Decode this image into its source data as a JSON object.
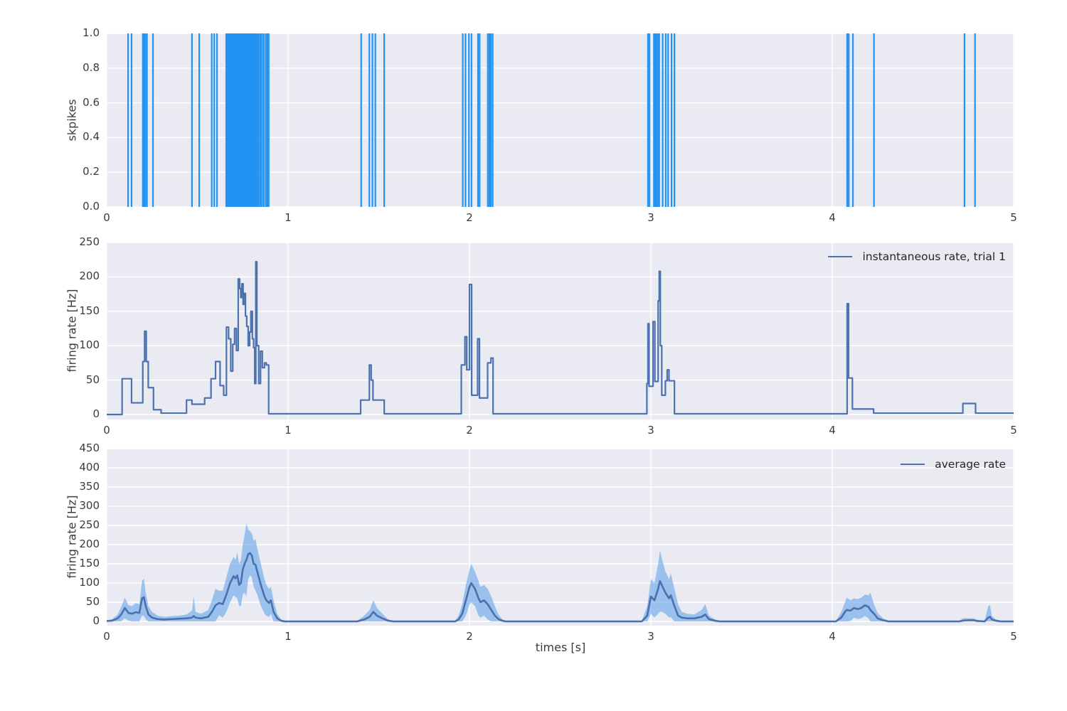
{
  "style": {
    "figure_background": "#ffffff",
    "axes_background": "#eaeaf2",
    "grid_color": "#ffffff",
    "tick_label_color": "#3b3b3b",
    "spike_color": "#2292f4",
    "instant_line_color": "#4c72b0",
    "average_line_color": "#4a70ad",
    "band_color": "rgba(110,170,235,0.65)"
  },
  "chart_data": [
    {
      "id": "spikes",
      "type": "event",
      "ylabel": "skpikes",
      "xlim": [
        0,
        5
      ],
      "ylim": [
        0,
        1
      ],
      "xticks": [
        0,
        1,
        2,
        3,
        4,
        5
      ],
      "xtick_labels": [
        "0",
        "1",
        "2",
        "3",
        "4",
        "5"
      ],
      "yticks": [
        0,
        0.2,
        0.4,
        0.6,
        0.8,
        1.0
      ],
      "ytick_labels": [
        "0.0",
        "0.2",
        "0.4",
        "0.6",
        "0.8",
        "1.0"
      ],
      "grid": true,
      "events": [
        0.118,
        0.137,
        0.199,
        0.206,
        0.213,
        0.222,
        0.255,
        0.47,
        0.51,
        0.579,
        0.593,
        0.608,
        0.659,
        0.667,
        0.674,
        0.681,
        0.688,
        0.696,
        0.703,
        0.71,
        0.716,
        0.722,
        0.728,
        0.734,
        0.74,
        0.746,
        0.752,
        0.758,
        0.764,
        0.77,
        0.776,
        0.782,
        0.788,
        0.794,
        0.8,
        0.807,
        0.814,
        0.822,
        0.83,
        0.838,
        0.847,
        0.856,
        0.866,
        0.877,
        0.885,
        0.893,
        1.403,
        1.448,
        1.465,
        1.481,
        1.53,
        1.963,
        1.978,
        1.997,
        2.011,
        2.047,
        2.056,
        2.101,
        2.11,
        2.118,
        2.128,
        2.984,
        2.993,
        3.017,
        3.024,
        3.032,
        3.04,
        3.046,
        3.065,
        3.082,
        3.095,
        3.114,
        3.13,
        4.082,
        4.091,
        4.114,
        4.23,
        4.729,
        4.787
      ]
    },
    {
      "id": "instantaneous",
      "type": "step",
      "legend": "instantaneous rate, trial 1",
      "ylabel": "firing rate [Hz]",
      "xlim": [
        0,
        5
      ],
      "ylim": [
        0,
        250
      ],
      "xticks": [
        0,
        1,
        2,
        3,
        4,
        5
      ],
      "xtick_labels": [
        "0",
        "1",
        "2",
        "3",
        "4",
        "5"
      ],
      "yticks": [
        0,
        50,
        100,
        150,
        200,
        250
      ],
      "ytick_labels": [
        "0",
        "50",
        "100",
        "150",
        "200",
        "250"
      ],
      "grid": true,
      "steps": [
        [
          0.0,
          0
        ],
        [
          0.085,
          52
        ],
        [
          0.137,
          17
        ],
        [
          0.199,
          77
        ],
        [
          0.209,
          121
        ],
        [
          0.218,
          77
        ],
        [
          0.229,
          39
        ],
        [
          0.258,
          7
        ],
        [
          0.3,
          2
        ],
        [
          0.44,
          21
        ],
        [
          0.47,
          15
        ],
        [
          0.54,
          24
        ],
        [
          0.575,
          52
        ],
        [
          0.6,
          77
        ],
        [
          0.625,
          42
        ],
        [
          0.645,
          28
        ],
        [
          0.66,
          127
        ],
        [
          0.672,
          110
        ],
        [
          0.684,
          63
        ],
        [
          0.695,
          102
        ],
        [
          0.705,
          125
        ],
        [
          0.715,
          93
        ],
        [
          0.725,
          197
        ],
        [
          0.733,
          183
        ],
        [
          0.739,
          170
        ],
        [
          0.745,
          190
        ],
        [
          0.752,
          160
        ],
        [
          0.758,
          176
        ],
        [
          0.765,
          143
        ],
        [
          0.772,
          128
        ],
        [
          0.78,
          100
        ],
        [
          0.788,
          120
        ],
        [
          0.795,
          150
        ],
        [
          0.803,
          110
        ],
        [
          0.81,
          97
        ],
        [
          0.816,
          45
        ],
        [
          0.822,
          222
        ],
        [
          0.828,
          100
        ],
        [
          0.838,
          45
        ],
        [
          0.848,
          92
        ],
        [
          0.858,
          68
        ],
        [
          0.87,
          75
        ],
        [
          0.88,
          72
        ],
        [
          0.893,
          1
        ],
        [
          1.4,
          21
        ],
        [
          1.448,
          72
        ],
        [
          1.458,
          50
        ],
        [
          1.468,
          21
        ],
        [
          1.53,
          1
        ],
        [
          1.955,
          72
        ],
        [
          1.975,
          113
        ],
        [
          1.985,
          65
        ],
        [
          2.0,
          189
        ],
        [
          2.012,
          28
        ],
        [
          2.045,
          110
        ],
        [
          2.055,
          24
        ],
        [
          2.1,
          75
        ],
        [
          2.118,
          82
        ],
        [
          2.13,
          1
        ],
        [
          2.978,
          45
        ],
        [
          2.984,
          132
        ],
        [
          2.99,
          41
        ],
        [
          3.012,
          135
        ],
        [
          3.022,
          48
        ],
        [
          3.04,
          165
        ],
        [
          3.046,
          208
        ],
        [
          3.052,
          100
        ],
        [
          3.06,
          28
        ],
        [
          3.08,
          49
        ],
        [
          3.09,
          65
        ],
        [
          3.1,
          49
        ],
        [
          3.13,
          1
        ],
        [
          4.082,
          161
        ],
        [
          4.09,
          53
        ],
        [
          4.111,
          8
        ],
        [
          4.228,
          2
        ],
        [
          4.72,
          16
        ],
        [
          4.79,
          2
        ],
        [
          5.0,
          2
        ]
      ]
    },
    {
      "id": "average",
      "type": "band-line",
      "legend": "average rate",
      "ylabel": "firing rate [Hz]",
      "xlabel": "times [s]",
      "xlim": [
        0,
        5
      ],
      "ylim": [
        0,
        450
      ],
      "xticks": [
        0,
        1,
        2,
        3,
        4,
        5
      ],
      "xtick_labels": [
        "0",
        "1",
        "2",
        "3",
        "4",
        "5"
      ],
      "yticks": [
        0,
        50,
        100,
        150,
        200,
        250,
        300,
        350,
        400,
        450
      ],
      "ytick_labels": [
        "0",
        "50",
        "100",
        "150",
        "200",
        "250",
        "300",
        "350",
        "400",
        "450"
      ],
      "grid": true,
      "points": [
        [
          0.0,
          0,
          1,
          2
        ],
        [
          0.03,
          0,
          2,
          6
        ],
        [
          0.06,
          0,
          8,
          18
        ],
        [
          0.08,
          0,
          18,
          38
        ],
        [
          0.1,
          8,
          35,
          62
        ],
        [
          0.12,
          2,
          22,
          42
        ],
        [
          0.14,
          0,
          20,
          40
        ],
        [
          0.16,
          0,
          24,
          48
        ],
        [
          0.18,
          0,
          22,
          45
        ],
        [
          0.195,
          15,
          60,
          105
        ],
        [
          0.205,
          14,
          63,
          112
        ],
        [
          0.215,
          5,
          40,
          75
        ],
        [
          0.23,
          0,
          18,
          40
        ],
        [
          0.25,
          0,
          10,
          25
        ],
        [
          0.28,
          0,
          6,
          15
        ],
        [
          0.32,
          0,
          5,
          12
        ],
        [
          0.36,
          0,
          6,
          14
        ],
        [
          0.4,
          0,
          7,
          15
        ],
        [
          0.44,
          0,
          8,
          18
        ],
        [
          0.47,
          0,
          10,
          28
        ],
        [
          0.48,
          0,
          14,
          65
        ],
        [
          0.49,
          0,
          10,
          25
        ],
        [
          0.52,
          0,
          8,
          20
        ],
        [
          0.56,
          0,
          12,
          30
        ],
        [
          0.58,
          0,
          25,
          55
        ],
        [
          0.6,
          0,
          42,
          85
        ],
        [
          0.62,
          16,
          48,
          80
        ],
        [
          0.64,
          10,
          45,
          80
        ],
        [
          0.66,
          25,
          70,
          115
        ],
        [
          0.68,
          50,
          100,
          150
        ],
        [
          0.7,
          68,
          118,
          168
        ],
        [
          0.71,
          64,
          112,
          160
        ],
        [
          0.72,
          60,
          120,
          180
        ],
        [
          0.73,
          40,
          95,
          150
        ],
        [
          0.74,
          40,
          100,
          160
        ],
        [
          0.75,
          70,
          135,
          200
        ],
        [
          0.76,
          75,
          150,
          225
        ],
        [
          0.77,
          65,
          160,
          255
        ],
        [
          0.78,
          110,
          175,
          240
        ],
        [
          0.79,
          120,
          178,
          235
        ],
        [
          0.8,
          115,
          172,
          230
        ],
        [
          0.81,
          90,
          150,
          210
        ],
        [
          0.82,
          80,
          148,
          215
        ],
        [
          0.83,
          70,
          130,
          190
        ],
        [
          0.85,
          40,
          95,
          150
        ],
        [
          0.86,
          30,
          80,
          130
        ],
        [
          0.87,
          20,
          65,
          110
        ],
        [
          0.88,
          15,
          55,
          95
        ],
        [
          0.895,
          11,
          48,
          85
        ],
        [
          0.905,
          20,
          55,
          90
        ],
        [
          0.92,
          0,
          25,
          55
        ],
        [
          0.94,
          0,
          8,
          20
        ],
        [
          0.96,
          0,
          2,
          6
        ],
        [
          0.98,
          0,
          0,
          2
        ],
        [
          1.38,
          0,
          0,
          1
        ],
        [
          1.42,
          0,
          5,
          15
        ],
        [
          1.45,
          0,
          12,
          30
        ],
        [
          1.47,
          0,
          25,
          55
        ],
        [
          1.49,
          0,
          15,
          35
        ],
        [
          1.52,
          0,
          8,
          20
        ],
        [
          1.55,
          0,
          2,
          6
        ],
        [
          1.58,
          0,
          0,
          1
        ],
        [
          1.92,
          0,
          0,
          1
        ],
        [
          1.94,
          0,
          5,
          15
        ],
        [
          1.96,
          0,
          20,
          45
        ],
        [
          1.98,
          15,
          55,
          95
        ],
        [
          2.0,
          45,
          90,
          135
        ],
        [
          2.01,
          50,
          100,
          150
        ],
        [
          2.03,
          40,
          85,
          130
        ],
        [
          2.05,
          15,
          60,
          105
        ],
        [
          2.06,
          10,
          50,
          90
        ],
        [
          2.08,
          15,
          55,
          95
        ],
        [
          2.1,
          5,
          45,
          85
        ],
        [
          2.12,
          0,
          30,
          65
        ],
        [
          2.14,
          0,
          15,
          40
        ],
        [
          2.16,
          0,
          6,
          18
        ],
        [
          2.18,
          0,
          2,
          6
        ],
        [
          2.2,
          0,
          0,
          1
        ],
        [
          2.95,
          0,
          0,
          1
        ],
        [
          2.98,
          0,
          15,
          40
        ],
        [
          3.0,
          20,
          65,
          110
        ],
        [
          3.02,
          10,
          55,
          100
        ],
        [
          3.04,
          20,
          85,
          150
        ],
        [
          3.05,
          25,
          105,
          185
        ],
        [
          3.06,
          25,
          95,
          165
        ],
        [
          3.08,
          20,
          75,
          130
        ],
        [
          3.1,
          10,
          60,
          110
        ],
        [
          3.11,
          11,
          68,
          125
        ],
        [
          3.13,
          0,
          40,
          85
        ],
        [
          3.15,
          0,
          15,
          45
        ],
        [
          3.17,
          0,
          10,
          25
        ],
        [
          3.2,
          0,
          8,
          20
        ],
        [
          3.24,
          0,
          8,
          18
        ],
        [
          3.28,
          0,
          12,
          30
        ],
        [
          3.3,
          0,
          18,
          45
        ],
        [
          3.32,
          0,
          6,
          15
        ],
        [
          3.35,
          0,
          2,
          6
        ],
        [
          3.38,
          0,
          0,
          1
        ],
        [
          4.02,
          0,
          0,
          1
        ],
        [
          4.05,
          0,
          10,
          25
        ],
        [
          4.07,
          0,
          25,
          50
        ],
        [
          4.08,
          0,
          30,
          62
        ],
        [
          4.1,
          1,
          28,
          55
        ],
        [
          4.12,
          10,
          35,
          60
        ],
        [
          4.14,
          6,
          32,
          58
        ],
        [
          4.16,
          8,
          35,
          62
        ],
        [
          4.18,
          14,
          42,
          70
        ],
        [
          4.2,
          8,
          38,
          68
        ],
        [
          4.21,
          0,
          30,
          75
        ],
        [
          4.23,
          0,
          20,
          45
        ],
        [
          4.25,
          0,
          8,
          22
        ],
        [
          4.28,
          0,
          3,
          8
        ],
        [
          4.31,
          0,
          0,
          2
        ],
        [
          4.7,
          0,
          0,
          1
        ],
        [
          4.72,
          0,
          2,
          8
        ],
        [
          4.75,
          0,
          3,
          8
        ],
        [
          4.78,
          0,
          3,
          8
        ],
        [
          4.8,
          0,
          1,
          4
        ],
        [
          4.84,
          0,
          0,
          2
        ],
        [
          4.86,
          0,
          10,
          40
        ],
        [
          4.87,
          0,
          12,
          42
        ],
        [
          4.88,
          0,
          5,
          14
        ],
        [
          4.9,
          0,
          2,
          6
        ],
        [
          4.93,
          0,
          0,
          1
        ],
        [
          5.0,
          0,
          0,
          1
        ]
      ]
    }
  ]
}
